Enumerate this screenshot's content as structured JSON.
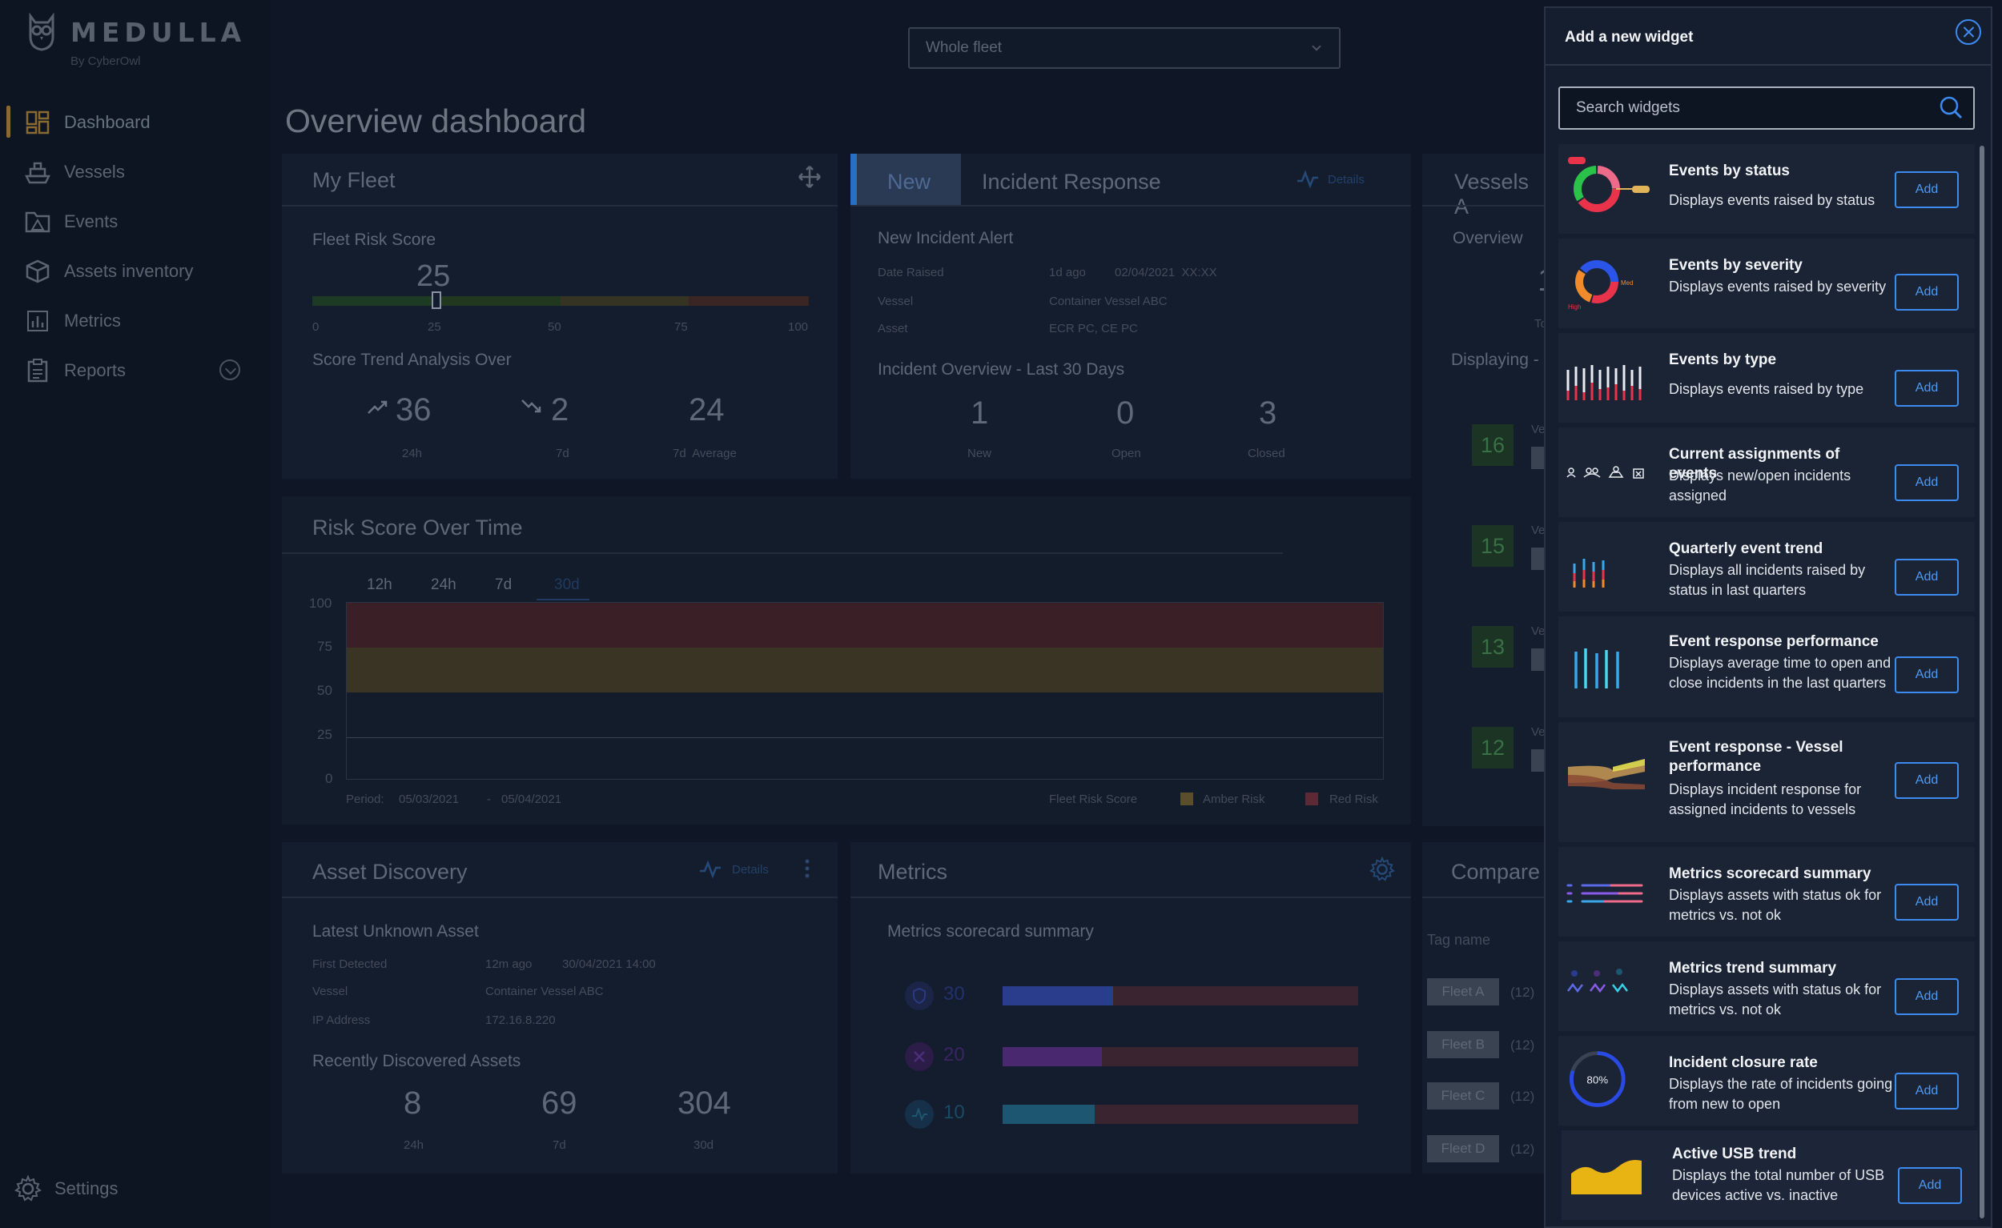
{
  "brand": {
    "name": "MEDULLA",
    "subtitle": "By CyberOwl"
  },
  "sidebar": {
    "items": [
      {
        "label": "Dashboard",
        "icon": "dashboard-icon"
      },
      {
        "label": "Vessels",
        "icon": "ship-icon"
      },
      {
        "label": "Events",
        "icon": "events-icon"
      },
      {
        "label": "Assets inventory",
        "icon": "box-icon"
      },
      {
        "label": "Metrics",
        "icon": "bar-chart-icon"
      },
      {
        "label": "Reports",
        "icon": "clipboard-icon"
      }
    ],
    "settings_label": "Settings"
  },
  "header": {
    "fleet_select": "Whole fleet",
    "page_title": "Overview dashboard"
  },
  "my_fleet": {
    "title": "My Fleet",
    "risk_label": "Fleet Risk Score",
    "risk_value": "25",
    "risk_fraction": 0.25,
    "risk_ticks": [
      "0",
      "25",
      "50",
      "75",
      "100"
    ],
    "trend_label": "Score Trend Analysis Over",
    "trends": [
      {
        "value": "36",
        "period": "24h"
      },
      {
        "value": "2",
        "period": "7d"
      },
      {
        "value": "24",
        "period": "7d  Average"
      }
    ]
  },
  "incident": {
    "badge": "New",
    "title": "Incident Response",
    "details": "Details",
    "alert_title": "New Incident Alert",
    "rows": [
      {
        "label": "Date Raised",
        "value": "1d ago",
        "extra": "02/04/2021  XX:XX"
      },
      {
        "label": "Vessel",
        "value": "Container Vessel ABC",
        "extra": ""
      },
      {
        "label": "Asset",
        "value": "ECR PC, CE PC",
        "extra": ""
      }
    ],
    "overview_title": "Incident Overview - Last 30 Days",
    "counts": [
      {
        "value": "1",
        "label": "New"
      },
      {
        "value": "0",
        "label": "Open"
      },
      {
        "value": "3",
        "label": "Closed"
      }
    ]
  },
  "vessels": {
    "title": "Vessels A",
    "overview": "Overview",
    "total": "Tota",
    "displaying": "Displaying -",
    "rows": [
      {
        "value": "16",
        "label": "Ve"
      },
      {
        "value": "15",
        "label": "Ve"
      },
      {
        "value": "13",
        "label": "Ve"
      },
      {
        "value": "12",
        "label": "Ve"
      }
    ]
  },
  "risk_time": {
    "title": "Risk Score Over Time",
    "tabs": [
      "12h",
      "24h",
      "7d",
      "30d"
    ],
    "y_ticks": [
      "100",
      "75",
      "50",
      "25",
      "0"
    ],
    "period_label": "Period:",
    "period_from": "05/03/2021",
    "period_to": "05/04/2021",
    "legend": [
      "Fleet Risk Score",
      "Amber Risk",
      "Red Risk"
    ]
  },
  "asset_discovery": {
    "title": "Asset Discovery",
    "details": "Details",
    "latest_title": "Latest Unknown Asset",
    "rows": [
      {
        "label": "First Detected",
        "value": "12m ago",
        "extra": "30/04/2021 14:00"
      },
      {
        "label": "Vessel",
        "value": "Container Vessel ABC",
        "extra": ""
      },
      {
        "label": "IP Address",
        "value": "172.16.8.220",
        "extra": ""
      }
    ],
    "recent_title": "Recently Discovered Assets",
    "counts": [
      {
        "value": "8",
        "label": "24h"
      },
      {
        "value": "69",
        "label": "7d"
      },
      {
        "value": "304",
        "label": "30d"
      }
    ]
  },
  "metrics": {
    "title": "Metrics",
    "subtitle": "Metrics scorecard summary",
    "rows": [
      {
        "value": "30",
        "fraction": 0.31,
        "color": "#2a3c8c"
      },
      {
        "value": "20",
        "fraction": 0.28,
        "color": "#4a2870"
      },
      {
        "value": "10",
        "fraction": 0.26,
        "color": "#1d5670"
      }
    ]
  },
  "compare": {
    "title": "Compare",
    "tag_header": "Tag name",
    "tags": [
      {
        "name": "Fleet A",
        "count": "(12)"
      },
      {
        "name": "Fleet B",
        "count": "(12)"
      },
      {
        "name": "Fleet C",
        "count": "(12)"
      },
      {
        "name": "Fleet D",
        "count": "(12)"
      }
    ]
  },
  "panel": {
    "title": "Add a new widget",
    "search_placeholder": "Search widgets",
    "add_label": "Add",
    "widgets": [
      {
        "title": "Events by status",
        "desc": "Displays events raised by status",
        "thumb": "donut-status"
      },
      {
        "title": "Events by severity",
        "desc": "Displays events raised by severity",
        "thumb": "donut-severity"
      },
      {
        "title": "Events by type",
        "desc": "Displays events raised by type",
        "thumb": "bars-type"
      },
      {
        "title": "Current assignments of events",
        "desc": "Displays new/open incidents assigned",
        "thumb": "assignments"
      },
      {
        "title": "Quarterly event trend",
        "desc": "Displays all incidents raised by status in last quarters",
        "thumb": "quarterly"
      },
      {
        "title": "Event response performance",
        "desc": "Displays average time to open and close incidents in the last quarters",
        "thumb": "response"
      },
      {
        "title": "Event response - Vessel performance",
        "desc": "Displays incident response for assigned incidents to vessels",
        "thumb": "sankey"
      },
      {
        "title": "Metrics scorecard summary",
        "desc": "Displays assets with status ok for metrics vs. not ok",
        "thumb": "scorecard"
      },
      {
        "title": "Metrics trend summary",
        "desc": "Displays assets with status ok for metrics vs. not ok",
        "thumb": "trend"
      },
      {
        "title": "Incident closure rate",
        "desc": "Displays the rate of incidents going from new to open",
        "thumb": "closure",
        "thumb_text": "80%"
      },
      {
        "title": "Active USB trend",
        "desc": "Displays the total number of USB devices active vs. inactive",
        "thumb": "usb"
      }
    ]
  }
}
